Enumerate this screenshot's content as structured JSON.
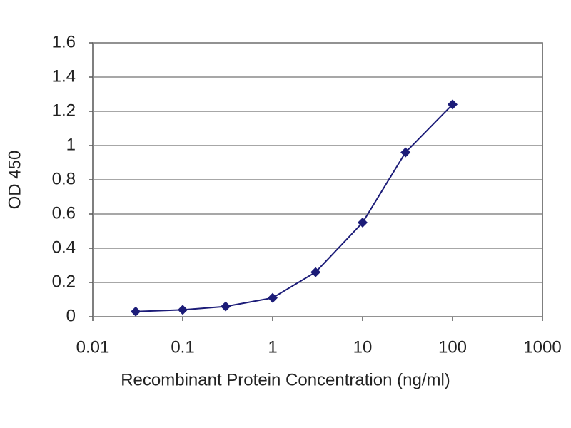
{
  "chart_data": {
    "type": "line",
    "x_label": "Recombinant Protein Concentration (ng/ml)",
    "y_label": "OD 450",
    "x": [
      0.03,
      0.1,
      0.3,
      1,
      3,
      10,
      30,
      100
    ],
    "values": [
      0.03,
      0.04,
      0.06,
      0.11,
      0.26,
      0.55,
      0.96,
      1.24
    ],
    "color": "#1c1c78",
    "xscale": "log",
    "xlim": [
      0.01,
      1000
    ],
    "xticks": [
      0.01,
      0.1,
      1,
      10,
      100,
      1000
    ],
    "ylim": [
      0,
      1.6
    ],
    "yticks": [
      0,
      0.2,
      0.4,
      0.6,
      0.8,
      1,
      1.2,
      1.4,
      1.6
    ],
    "grid": true
  }
}
